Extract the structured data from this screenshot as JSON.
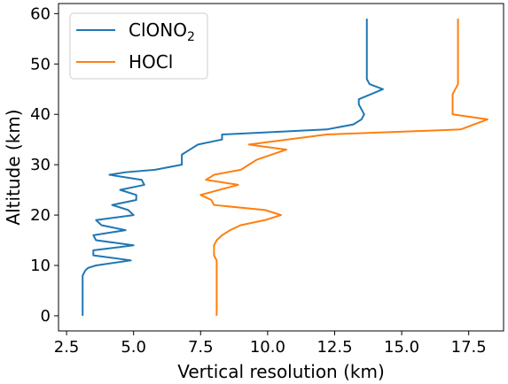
{
  "chart_data": {
    "type": "line",
    "xlabel": "Vertical resolution (km)",
    "ylabel": "Altitude (km)",
    "xlim": [
      2.2,
      18.8
    ],
    "ylim": [
      -3,
      62
    ],
    "xticks": [
      "2.5",
      "5.0",
      "7.5",
      "10.0",
      "12.5",
      "15.0",
      "17.5"
    ],
    "yticks": [
      "0",
      "10",
      "20",
      "30",
      "40",
      "50",
      "60"
    ],
    "grid": false,
    "legend_position": "top-left",
    "series": [
      {
        "name": "ClONO",
        "name_subscript": "2",
        "color": "#1f77b4",
        "x": [
          3.1,
          3.1,
          3.1,
          3.1,
          3.1,
          3.2,
          3.3,
          3.6,
          4.9,
          3.5,
          3.5,
          5.0,
          3.6,
          3.5,
          4.7,
          3.8,
          3.6,
          5.0,
          4.8,
          4.2,
          5.1,
          5.1,
          4.5,
          5.4,
          5.3,
          4.1,
          4.7,
          5.8,
          6.8,
          6.8,
          7.1,
          7.4,
          8.3,
          8.3,
          12.2,
          13.2,
          13.5,
          13.6,
          13.5,
          13.4,
          13.4,
          14.3,
          13.8,
          13.7,
          13.7,
          13.7,
          13.7,
          13.7
        ],
        "y": [
          0,
          3,
          5,
          7,
          8,
          9,
          9.5,
          10,
          11,
          12,
          13,
          14,
          15,
          16,
          17,
          18,
          19,
          20,
          21,
          22,
          23,
          24,
          25,
          26,
          27,
          28,
          28.5,
          29,
          30,
          32,
          33,
          34,
          35,
          36,
          37,
          38,
          39,
          40,
          41,
          42,
          43,
          45,
          46,
          47,
          48,
          50,
          55,
          59
        ]
      },
      {
        "name": "HOCl",
        "name_subscript": "",
        "color": "#ff7f0e",
        "x": [
          8.1,
          8.1,
          8.1,
          8.1,
          8.1,
          8.0,
          8.0,
          8.0,
          8.1,
          8.3,
          8.6,
          9.0,
          9.9,
          10.5,
          9.9,
          8.0,
          7.9,
          7.5,
          8.9,
          7.7,
          8.0,
          9.0,
          9.3,
          9.6,
          10.7,
          9.3,
          12.2,
          17.2,
          18.2,
          16.9,
          16.9,
          16.9,
          17.1,
          17.1,
          17.1
        ],
        "y": [
          0,
          5,
          8,
          10,
          11,
          12,
          13,
          14,
          15,
          16,
          17,
          18,
          19,
          20,
          21,
          22,
          23,
          24,
          26,
          27,
          28,
          29,
          30,
          31,
          33,
          34,
          36,
          37,
          39,
          40,
          42,
          44,
          46,
          52,
          59
        ]
      }
    ]
  }
}
